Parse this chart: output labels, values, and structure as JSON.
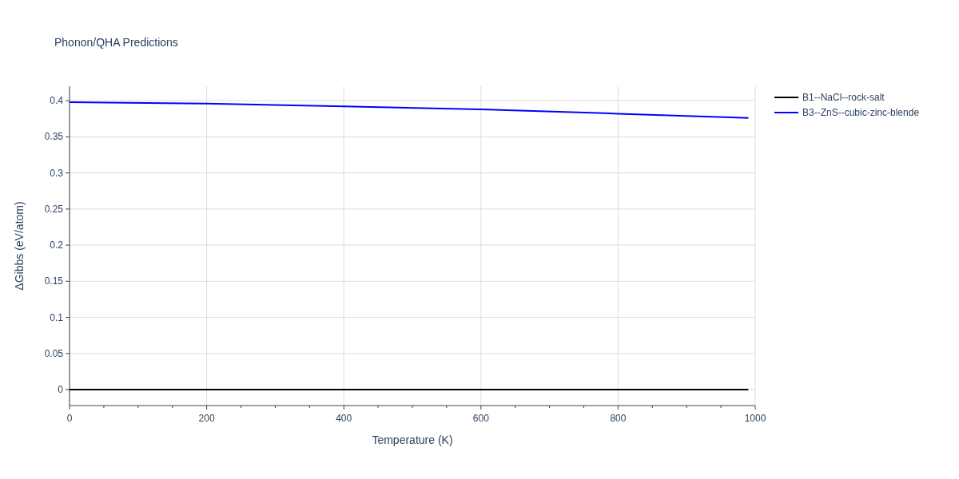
{
  "chart_data": {
    "type": "line",
    "title": "Phonon/QHA Predictions",
    "xlabel": "Temperature (K)",
    "ylabel": "ΔGibbs (eV/atom)",
    "xlim": [
      0,
      1000
    ],
    "xticks": [
      0,
      {
        "value": 50,
        "label": null
      },
      {
        "value": 100,
        "label": null
      },
      {
        "value": 150,
        "label": null
      },
      200,
      {
        "value": 250,
        "label": null
      },
      {
        "value": 300,
        "label": null
      },
      {
        "value": 350,
        "label": null
      },
      400,
      {
        "value": 450,
        "label": null
      },
      {
        "value": 500,
        "label": null
      },
      {
        "value": 550,
        "label": null
      },
      600,
      {
        "value": 650,
        "label": null
      },
      {
        "value": 700,
        "label": null
      },
      {
        "value": 750,
        "label": null
      },
      800,
      {
        "value": 850,
        "label": null
      },
      {
        "value": 900,
        "label": null
      },
      {
        "value": 950,
        "label": null
      },
      1000
    ],
    "ylim": [
      -0.022,
      0.42
    ],
    "yticks": [
      0,
      0.05,
      0.1,
      0.15,
      0.2,
      0.25,
      0.3,
      0.35,
      0.4
    ],
    "grid": true,
    "legend": "top right",
    "marker": "none",
    "line_style": "solid",
    "series": [
      {
        "name": "B1--NaCl--rock-salt",
        "color": "#000000",
        "x": [
          0,
          200,
          400,
          600,
          800,
          990
        ],
        "values": [
          0,
          0,
          0,
          0,
          0,
          0
        ]
      },
      {
        "name": "B3--ZnS--cubic-zinc-blende",
        "color": "#0000ff",
        "x": [
          0,
          200,
          400,
          600,
          800,
          990
        ],
        "values": [
          0.398,
          0.396,
          0.392,
          0.388,
          0.382,
          0.376
        ]
      }
    ]
  }
}
